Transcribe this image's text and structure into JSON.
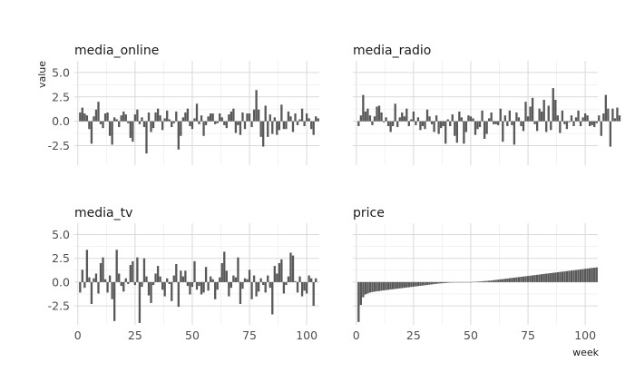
{
  "chart_data": {
    "type": "bar",
    "layout": "facet-2x2",
    "ylabel": "value",
    "xlabel": "week",
    "xlim": [
      0,
      104
    ],
    "ylim": [
      -4.5,
      6.2
    ],
    "x_ticks": [
      0,
      25,
      50,
      75,
      100
    ],
    "y_ticks": [
      -2.5,
      0.0,
      2.5,
      5.0
    ],
    "x_tick_labels": [
      "0",
      "25",
      "50",
      "75",
      "100"
    ],
    "y_tick_labels": [
      "-2.5",
      "0.0",
      "2.5",
      "5.0"
    ],
    "grid": true,
    "bar_color": "#595959",
    "panels": [
      {
        "title": "media_online",
        "values": [
          0.9,
          1.4,
          0.8,
          0.6,
          -0.8,
          -2.3,
          0.5,
          1.2,
          2.0,
          -0.3,
          -0.7,
          0.8,
          0.9,
          -1.5,
          -2.4,
          0.4,
          0.2,
          -0.6,
          0.6,
          1.0,
          0.7,
          -0.2,
          -1.7,
          -2.1,
          0.7,
          1.2,
          -0.3,
          0.4,
          -0.6,
          -3.3,
          0.9,
          -1.1,
          -0.7,
          0.9,
          1.3,
          0.6,
          -0.9,
          0.3,
          1.1,
          0.2,
          -0.6,
          -0.2,
          1.0,
          -2.9,
          -1.5,
          0.4,
          0.9,
          1.3,
          -0.5,
          -0.8,
          0.3,
          1.8,
          -0.3,
          0.6,
          -1.5,
          -0.4,
          0.5,
          0.8,
          0.8,
          -0.3,
          -0.2,
          0.8,
          0.4,
          -0.4,
          -0.7,
          0.7,
          1.0,
          1.3,
          -1.2,
          -0.4,
          -1.4,
          0.9,
          -0.8,
          0.8,
          0.8,
          -0.6,
          1.2,
          3.2,
          1.2,
          -1.6,
          -2.6,
          1.6,
          -1.6,
          0.7,
          -1.3,
          0.4,
          -1.4,
          -0.9,
          1.7,
          -0.8,
          -0.8,
          1.0,
          0.5,
          -1.1,
          0.8,
          -0.4,
          0.2,
          1.3,
          -0.5,
          0.8,
          0.3,
          -0.8,
          -1.4,
          0.5,
          0.3
        ],
        "x_tick_labels_visible": false,
        "y_tick_labels_visible": true
      },
      {
        "title": "media_radio",
        "values": [
          -0.5,
          0.6,
          2.7,
          1.0,
          1.3,
          0.6,
          -0.4,
          0.5,
          1.5,
          1.6,
          0.9,
          -0.1,
          0.4,
          -0.5,
          -1.1,
          -0.5,
          1.8,
          -0.6,
          0.4,
          0.9,
          0.5,
          1.3,
          -0.5,
          0.2,
          1.0,
          -0.4,
          0.4,
          -0.9,
          -0.5,
          -0.8,
          1.2,
          0.5,
          -0.3,
          -1.1,
          0.6,
          -1.3,
          -0.7,
          -0.5,
          -2.3,
          0.2,
          -0.5,
          0.7,
          -1.5,
          -2.2,
          1.0,
          0.4,
          -2.3,
          -1.1,
          0.6,
          0.5,
          0.3,
          -1.4,
          -0.8,
          -0.6,
          1.1,
          -1.8,
          -1.3,
          0.3,
          0.9,
          -0.3,
          -0.3,
          -0.4,
          1.3,
          -2.1,
          0.6,
          -0.5,
          1.1,
          -0.4,
          -2.4,
          0.9,
          0.4,
          -0.5,
          -1.0,
          2.0,
          0.5,
          1.5,
          2.4,
          -0.3,
          -1.0,
          1.3,
          1.0,
          2.2,
          -1.1,
          1.6,
          -0.9,
          3.4,
          2.2,
          0.6,
          -1.2,
          1.1,
          -0.3,
          -0.8,
          -0.1,
          0.6,
          -0.5,
          0.4,
          1.1,
          -0.5,
          0.4,
          0.8,
          0.6,
          -0.5,
          -0.4,
          -0.6,
          -0.2,
          0.6,
          -1.5,
          0.8,
          2.7,
          1.3,
          -2.6,
          1.3,
          0.3,
          1.4,
          0.6
        ],
        "x_tick_labels_visible": false,
        "y_tick_labels_visible": false
      },
      {
        "title": "media_tv",
        "values": [
          -1.1,
          1.3,
          -0.6,
          3.4,
          0.5,
          -2.3,
          0.4,
          0.9,
          -1.2,
          2.0,
          2.6,
          0.3,
          -1.1,
          0.7,
          -1.8,
          -4.1,
          3.4,
          0.9,
          -0.4,
          -1.0,
          0.4,
          -0.2,
          1.8,
          2.2,
          -0.3,
          2.6,
          -4.3,
          -0.5,
          2.5,
          0.6,
          -1.4,
          -2.2,
          -0.3,
          0.9,
          1.7,
          0.6,
          -0.8,
          -1.5,
          0.4,
          -0.2,
          -2.0,
          0.7,
          1.9,
          -2.6,
          1.2,
          0.6,
          1.2,
          -0.4,
          -1.3,
          -0.5,
          2.2,
          -0.8,
          -0.4,
          -1.3,
          -1.1,
          1.6,
          -0.9,
          0.6,
          0.3,
          -1.8,
          -0.8,
          0.5,
          2.0,
          3.2,
          1.2,
          -1.5,
          -0.6,
          0.7,
          0.5,
          2.6,
          -2.3,
          -0.7,
          0.4,
          0.3,
          1.3,
          -1.8,
          0.7,
          -1.5,
          -1.0,
          0.4,
          -0.3,
          -1.1,
          0.7,
          -0.6,
          -3.4,
          1.7,
          0.9,
          2.0,
          2.4,
          -1.2,
          -0.3,
          0.6,
          3.1,
          2.8,
          0.1,
          -1.1,
          0.6,
          -1.5,
          -0.9,
          -1.2,
          0.7,
          0.4,
          -2.5,
          0.4
        ],
        "x_tick_labels_visible": true,
        "y_tick_labels_visible": true
      },
      {
        "title": "price",
        "values": [
          -4.2,
          -2.4,
          -1.6,
          -1.3,
          -1.2,
          -1.1,
          -1.05,
          -1.0,
          -0.97,
          -0.94,
          -0.9,
          -0.87,
          -0.84,
          -0.81,
          -0.78,
          -0.75,
          -0.72,
          -0.69,
          -0.66,
          -0.63,
          -0.6,
          -0.57,
          -0.54,
          -0.51,
          -0.48,
          -0.45,
          -0.42,
          -0.39,
          -0.36,
          -0.33,
          -0.3,
          -0.27,
          -0.24,
          -0.21,
          -0.18,
          -0.15,
          -0.13,
          -0.11,
          -0.09,
          -0.07,
          -0.05,
          -0.04,
          -0.03,
          -0.02,
          -0.01,
          0.0,
          0.0,
          0.0,
          0.0,
          0.0,
          0.02,
          0.03,
          0.05,
          0.07,
          0.09,
          0.11,
          0.13,
          0.15,
          0.17,
          0.2,
          0.23,
          0.26,
          0.29,
          0.32,
          0.35,
          0.38,
          0.41,
          0.44,
          0.47,
          0.5,
          0.53,
          0.56,
          0.59,
          0.62,
          0.65,
          0.68,
          0.71,
          0.74,
          0.77,
          0.8,
          0.83,
          0.86,
          0.89,
          0.92,
          0.95,
          0.98,
          1.01,
          1.04,
          1.07,
          1.1,
          1.13,
          1.16,
          1.19,
          1.22,
          1.25,
          1.28,
          1.31,
          1.34,
          1.37,
          1.4,
          1.43,
          1.46,
          1.49,
          1.52,
          1.55
        ],
        "x_tick_labels_visible": true,
        "y_tick_labels_visible": false
      }
    ]
  }
}
